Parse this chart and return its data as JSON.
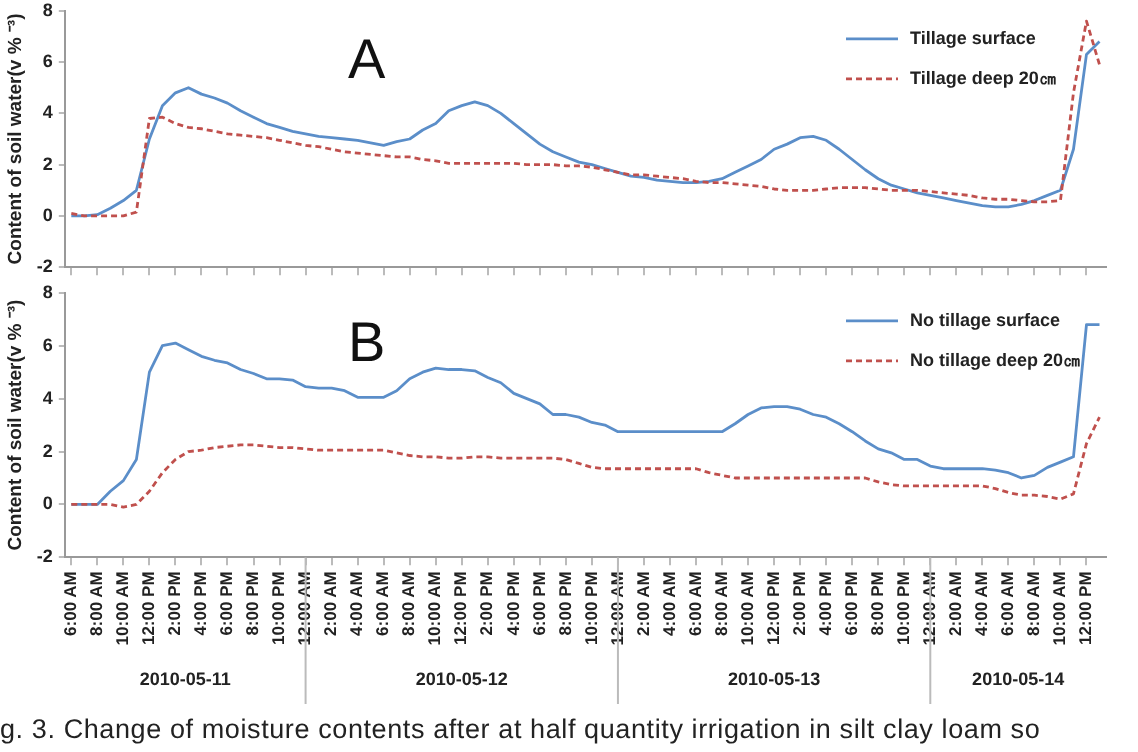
{
  "chart_data": [
    {
      "type": "line",
      "ylabel": "Content of soil water(v % ⁻³)",
      "legend": "top right",
      "tick_labels": "y",
      "annotations": [
        "A"
      ],
      "xticks": [
        {
          "value": "2010-05-11T06:00",
          "label": null
        },
        {
          "value": "2010-05-11T08:00",
          "label": null
        },
        {
          "value": "2010-05-11T10:00",
          "label": null
        },
        {
          "value": "2010-05-11T12:00",
          "label": null
        },
        {
          "value": "2010-05-11T14:00",
          "label": null
        },
        {
          "value": "2010-05-11T16:00",
          "label": null
        },
        {
          "value": "2010-05-11T18:00",
          "label": null
        },
        {
          "value": "2010-05-11T20:00",
          "label": null
        },
        {
          "value": "2010-05-11T22:00",
          "label": null
        },
        {
          "value": "2010-05-12T00:00",
          "label": null
        },
        {
          "value": "2010-05-12T02:00",
          "label": null
        },
        {
          "value": "2010-05-12T04:00",
          "label": null
        },
        {
          "value": "2010-05-12T06:00",
          "label": null
        },
        {
          "value": "2010-05-12T08:00",
          "label": null
        },
        {
          "value": "2010-05-12T10:00",
          "label": null
        },
        {
          "value": "2010-05-12T12:00",
          "label": null
        },
        {
          "value": "2010-05-12T14:00",
          "label": null
        },
        {
          "value": "2010-05-12T16:00",
          "label": null
        },
        {
          "value": "2010-05-12T18:00",
          "label": null
        },
        {
          "value": "2010-05-12T20:00",
          "label": null
        },
        {
          "value": "2010-05-12T22:00",
          "label": null
        },
        {
          "value": "2010-05-13T00:00",
          "label": null
        },
        {
          "value": "2010-05-13T02:00",
          "label": null
        },
        {
          "value": "2010-05-13T04:00",
          "label": null
        },
        {
          "value": "2010-05-13T06:00",
          "label": null
        },
        {
          "value": "2010-05-13T08:00",
          "label": null
        },
        {
          "value": "2010-05-13T10:00",
          "label": null
        },
        {
          "value": "2010-05-13T12:00",
          "label": null
        },
        {
          "value": "2010-05-13T14:00",
          "label": null
        },
        {
          "value": "2010-05-13T16:00",
          "label": null
        },
        {
          "value": "2010-05-13T18:00",
          "label": null
        },
        {
          "value": "2010-05-13T20:00",
          "label": null
        },
        {
          "value": "2010-05-13T22:00",
          "label": null
        },
        {
          "value": "2010-05-14T00:00",
          "label": null
        },
        {
          "value": "2010-05-14T02:00",
          "label": null
        },
        {
          "value": "2010-05-14T04:00",
          "label": null
        },
        {
          "value": "2010-05-14T06:00",
          "label": null
        },
        {
          "value": "2010-05-14T08:00",
          "label": null
        },
        {
          "value": "2010-05-14T10:00",
          "label": null
        },
        {
          "value": "2010-05-14T12:00",
          "label": null
        }
      ],
      "x": [
        "2010-05-11T06:00",
        "2010-05-11T07:00",
        "2010-05-11T08:00",
        "2010-05-11T09:00",
        "2010-05-11T10:00",
        "2010-05-11T11:00",
        "2010-05-11T12:00",
        "2010-05-11T13:00",
        "2010-05-11T14:00",
        "2010-05-11T15:00",
        "2010-05-11T16:00",
        "2010-05-11T17:00",
        "2010-05-11T18:00",
        "2010-05-11T19:00",
        "2010-05-11T20:00",
        "2010-05-11T21:00",
        "2010-05-11T22:00",
        "2010-05-11T23:00",
        "2010-05-12T00:00",
        "2010-05-12T01:00",
        "2010-05-12T02:00",
        "2010-05-12T03:00",
        "2010-05-12T04:00",
        "2010-05-12T05:00",
        "2010-05-12T06:00",
        "2010-05-12T07:00",
        "2010-05-12T08:00",
        "2010-05-12T09:00",
        "2010-05-12T10:00",
        "2010-05-12T11:00",
        "2010-05-12T12:00",
        "2010-05-12T13:00",
        "2010-05-12T14:00",
        "2010-05-12T15:00",
        "2010-05-12T16:00",
        "2010-05-12T17:00",
        "2010-05-12T18:00",
        "2010-05-12T19:00",
        "2010-05-12T20:00",
        "2010-05-12T21:00",
        "2010-05-12T22:00",
        "2010-05-12T23:00",
        "2010-05-13T00:00",
        "2010-05-13T01:00",
        "2010-05-13T02:00",
        "2010-05-13T03:00",
        "2010-05-13T04:00",
        "2010-05-13T05:00",
        "2010-05-13T06:00",
        "2010-05-13T07:00",
        "2010-05-13T08:00",
        "2010-05-13T09:00",
        "2010-05-13T10:00",
        "2010-05-13T11:00",
        "2010-05-13T12:00",
        "2010-05-13T13:00",
        "2010-05-13T14:00",
        "2010-05-13T15:00",
        "2010-05-13T16:00",
        "2010-05-13T17:00",
        "2010-05-13T18:00",
        "2010-05-13T19:00",
        "2010-05-13T20:00",
        "2010-05-13T21:00",
        "2010-05-13T22:00",
        "2010-05-13T23:00",
        "2010-05-14T00:00",
        "2010-05-14T01:00",
        "2010-05-14T02:00",
        "2010-05-14T03:00",
        "2010-05-14T04:00",
        "2010-05-14T05:00",
        "2010-05-14T06:00",
        "2010-05-14T07:00",
        "2010-05-14T08:00",
        "2010-05-14T09:00",
        "2010-05-14T10:00",
        "2010-05-14T11:00",
        "2010-05-14T12:00",
        "2010-05-14T13:00"
      ],
      "xlim": [
        "2010-05-11T05:30",
        "2010-05-14T13:30"
      ],
      "ylim": [
        -2,
        8
      ],
      "yticks": [
        -2,
        0,
        2,
        4,
        6,
        8
      ],
      "series": [
        {
          "name": "Tillage surface",
          "color": "#5b8ec9",
          "line_style": "solid",
          "values": [
            0,
            0,
            0.05,
            0.3,
            0.6,
            1.0,
            3.0,
            4.3,
            4.8,
            5.0,
            4.75,
            4.6,
            4.4,
            4.1,
            3.85,
            3.6,
            3.45,
            3.3,
            3.2,
            3.1,
            3.05,
            3.0,
            2.95,
            2.85,
            2.75,
            2.9,
            3.0,
            3.35,
            3.6,
            4.1,
            4.3,
            4.45,
            4.3,
            4.0,
            3.6,
            3.2,
            2.8,
            2.5,
            2.3,
            2.1,
            2.0,
            1.85,
            1.7,
            1.55,
            1.5,
            1.4,
            1.35,
            1.3,
            1.3,
            1.35,
            1.45,
            1.7,
            1.95,
            2.2,
            2.6,
            2.8,
            3.05,
            3.1,
            2.95,
            2.6,
            2.2,
            1.8,
            1.45,
            1.2,
            1.05,
            0.9,
            0.8,
            0.7,
            0.6,
            0.5,
            0.4,
            0.35,
            0.35,
            0.45,
            0.6,
            0.8,
            1.0,
            2.6,
            6.3,
            6.8
          ]
        },
        {
          "name": "Tillage deep 20㎝",
          "color": "#c0504d",
          "line_style": "dashed",
          "values": [
            0.1,
            0,
            0,
            0,
            0,
            0.15,
            3.8,
            3.85,
            3.6,
            3.45,
            3.4,
            3.3,
            3.2,
            3.15,
            3.1,
            3.05,
            2.95,
            2.85,
            2.75,
            2.7,
            2.6,
            2.5,
            2.45,
            2.4,
            2.35,
            2.3,
            2.3,
            2.2,
            2.15,
            2.05,
            2.05,
            2.05,
            2.05,
            2.05,
            2.05,
            2.0,
            2.0,
            2.0,
            1.95,
            1.95,
            1.9,
            1.8,
            1.7,
            1.6,
            1.6,
            1.55,
            1.5,
            1.45,
            1.35,
            1.3,
            1.3,
            1.25,
            1.2,
            1.15,
            1.05,
            1.0,
            1.0,
            1.0,
            1.05,
            1.1,
            1.1,
            1.1,
            1.05,
            1.0,
            1.0,
            1.0,
            0.95,
            0.9,
            0.85,
            0.8,
            0.7,
            0.65,
            0.65,
            0.6,
            0.55,
            0.55,
            0.6,
            4.8,
            7.6,
            5.9
          ]
        }
      ]
    },
    {
      "type": "line",
      "ylabel": "Content of soil water(v % ⁻³)",
      "legend": "top right",
      "annotations": [
        "B",
        "g. 3. Change of moisture contents after at half quantity irrigation in silt clay loam so",
        "2010-05-11",
        "2010-05-12",
        "2010-05-13",
        "2010-05-14"
      ],
      "x": [
        "2010-05-11T06:00",
        "2010-05-11T07:00",
        "2010-05-11T08:00",
        "2010-05-11T09:00",
        "2010-05-11T10:00",
        "2010-05-11T11:00",
        "2010-05-11T12:00",
        "2010-05-11T13:00",
        "2010-05-11T14:00",
        "2010-05-11T15:00",
        "2010-05-11T16:00",
        "2010-05-11T17:00",
        "2010-05-11T18:00",
        "2010-05-11T19:00",
        "2010-05-11T20:00",
        "2010-05-11T21:00",
        "2010-05-11T22:00",
        "2010-05-11T23:00",
        "2010-05-12T00:00",
        "2010-05-12T01:00",
        "2010-05-12T02:00",
        "2010-05-12T03:00",
        "2010-05-12T04:00",
        "2010-05-12T05:00",
        "2010-05-12T06:00",
        "2010-05-12T07:00",
        "2010-05-12T08:00",
        "2010-05-12T09:00",
        "2010-05-12T10:00",
        "2010-05-12T11:00",
        "2010-05-12T12:00",
        "2010-05-12T13:00",
        "2010-05-12T14:00",
        "2010-05-12T15:00",
        "2010-05-12T16:00",
        "2010-05-12T17:00",
        "2010-05-12T18:00",
        "2010-05-12T19:00",
        "2010-05-12T20:00",
        "2010-05-12T21:00",
        "2010-05-12T22:00",
        "2010-05-12T23:00",
        "2010-05-13T00:00",
        "2010-05-13T01:00",
        "2010-05-13T02:00",
        "2010-05-13T03:00",
        "2010-05-13T04:00",
        "2010-05-13T05:00",
        "2010-05-13T06:00",
        "2010-05-13T07:00",
        "2010-05-13T08:00",
        "2010-05-13T09:00",
        "2010-05-13T10:00",
        "2010-05-13T11:00",
        "2010-05-13T12:00",
        "2010-05-13T13:00",
        "2010-05-13T14:00",
        "2010-05-13T15:00",
        "2010-05-13T16:00",
        "2010-05-13T17:00",
        "2010-05-13T18:00",
        "2010-05-13T19:00",
        "2010-05-13T20:00",
        "2010-05-13T21:00",
        "2010-05-13T22:00",
        "2010-05-13T23:00",
        "2010-05-14T00:00",
        "2010-05-14T01:00",
        "2010-05-14T02:00",
        "2010-05-14T03:00",
        "2010-05-14T04:00",
        "2010-05-14T05:00",
        "2010-05-14T06:00",
        "2010-05-14T07:00",
        "2010-05-14T08:00",
        "2010-05-14T09:00",
        "2010-05-14T10:00",
        "2010-05-14T11:00",
        "2010-05-14T12:00",
        "2010-05-14T13:00"
      ],
      "xlim": [
        "2010-05-11T05:30",
        "2010-05-14T13:30"
      ],
      "xticks": [
        {
          "value": "2010-05-11T06:00",
          "label": "6:00 AM"
        },
        {
          "value": "2010-05-11T08:00",
          "label": "8:00 AM"
        },
        {
          "value": "2010-05-11T10:00",
          "label": "10:00 AM"
        },
        {
          "value": "2010-05-11T12:00",
          "label": "12:00 PM"
        },
        {
          "value": "2010-05-11T14:00",
          "label": "2:00 PM"
        },
        {
          "value": "2010-05-11T16:00",
          "label": "4:00 PM"
        },
        {
          "value": "2010-05-11T18:00",
          "label": "6:00 PM"
        },
        {
          "value": "2010-05-11T20:00",
          "label": "8:00 PM"
        },
        {
          "value": "2010-05-11T22:00",
          "label": "10:00 PM"
        },
        {
          "value": "2010-05-12T00:00",
          "label": "12:00 AM"
        },
        {
          "value": "2010-05-12T02:00",
          "label": "2:00 AM"
        },
        {
          "value": "2010-05-12T04:00",
          "label": "4:00 AM"
        },
        {
          "value": "2010-05-12T06:00",
          "label": "6:00 AM"
        },
        {
          "value": "2010-05-12T08:00",
          "label": "8:00 AM"
        },
        {
          "value": "2010-05-12T10:00",
          "label": "10:00 AM"
        },
        {
          "value": "2010-05-12T12:00",
          "label": "12:00 PM"
        },
        {
          "value": "2010-05-12T14:00",
          "label": "2:00 PM"
        },
        {
          "value": "2010-05-12T16:00",
          "label": "4:00 PM"
        },
        {
          "value": "2010-05-12T18:00",
          "label": "6:00 PM"
        },
        {
          "value": "2010-05-12T20:00",
          "label": "8:00 PM"
        },
        {
          "value": "2010-05-12T22:00",
          "label": "10:00 PM"
        },
        {
          "value": "2010-05-13T00:00",
          "label": "12:00 AM"
        },
        {
          "value": "2010-05-13T02:00",
          "label": "2:00 AM"
        },
        {
          "value": "2010-05-13T04:00",
          "label": "4:00 AM"
        },
        {
          "value": "2010-05-13T06:00",
          "label": "6:00 AM"
        },
        {
          "value": "2010-05-13T08:00",
          "label": "8:00 AM"
        },
        {
          "value": "2010-05-13T10:00",
          "label": "10:00 AM"
        },
        {
          "value": "2010-05-13T12:00",
          "label": "12:00 PM"
        },
        {
          "value": "2010-05-13T14:00",
          "label": "2:00 PM"
        },
        {
          "value": "2010-05-13T16:00",
          "label": "4:00 PM"
        },
        {
          "value": "2010-05-13T18:00",
          "label": "6:00 PM"
        },
        {
          "value": "2010-05-13T20:00",
          "label": "8:00 PM"
        },
        {
          "value": "2010-05-13T22:00",
          "label": "10:00 PM"
        },
        {
          "value": "2010-05-14T00:00",
          "label": "12:00 AM"
        },
        {
          "value": "2010-05-14T02:00",
          "label": "2:00 AM"
        },
        {
          "value": "2010-05-14T04:00",
          "label": "4:00 AM"
        },
        {
          "value": "2010-05-14T06:00",
          "label": "6:00 AM"
        },
        {
          "value": "2010-05-14T08:00",
          "label": "8:00 AM"
        },
        {
          "value": "2010-05-14T10:00",
          "label": "10:00 AM"
        },
        {
          "value": "2010-05-14T12:00",
          "label": "12:00 PM"
        }
      ],
      "ylim": [
        -2,
        8
      ],
      "yticks": [
        -2,
        0,
        2,
        4,
        6,
        8
      ],
      "series": [
        {
          "name": "No tillage surface",
          "color": "#5b8ec9",
          "line_style": "solid",
          "values": [
            0,
            0,
            0,
            0.5,
            0.9,
            1.7,
            5.0,
            6.0,
            6.1,
            5.85,
            5.6,
            5.45,
            5.35,
            5.1,
            4.95,
            4.75,
            4.75,
            4.7,
            4.45,
            4.4,
            4.4,
            4.3,
            4.05,
            4.05,
            4.05,
            4.3,
            4.75,
            5.0,
            5.15,
            5.1,
            5.1,
            5.05,
            4.8,
            4.6,
            4.2,
            4.0,
            3.8,
            3.4,
            3.4,
            3.3,
            3.1,
            3.0,
            2.75,
            2.75,
            2.75,
            2.75,
            2.75,
            2.75,
            2.75,
            2.75,
            2.75,
            3.05,
            3.4,
            3.65,
            3.7,
            3.7,
            3.6,
            3.4,
            3.3,
            3.05,
            2.75,
            2.4,
            2.1,
            1.95,
            1.7,
            1.7,
            1.45,
            1.35,
            1.35,
            1.35,
            1.35,
            1.3,
            1.2,
            1.0,
            1.1,
            1.4,
            1.6,
            1.8,
            6.8,
            6.8
          ]
        },
        {
          "name": "No tillage deep 20㎝",
          "color": "#c0504d",
          "line_style": "dashed",
          "values": [
            0,
            0,
            0,
            0,
            -0.1,
            0,
            0.5,
            1.2,
            1.7,
            2.0,
            2.05,
            2.15,
            2.2,
            2.25,
            2.25,
            2.2,
            2.15,
            2.15,
            2.1,
            2.05,
            2.05,
            2.05,
            2.05,
            2.05,
            2.05,
            1.95,
            1.85,
            1.8,
            1.8,
            1.75,
            1.75,
            1.8,
            1.8,
            1.75,
            1.75,
            1.75,
            1.75,
            1.75,
            1.7,
            1.55,
            1.4,
            1.35,
            1.35,
            1.35,
            1.35,
            1.35,
            1.35,
            1.35,
            1.35,
            1.2,
            1.1,
            1.0,
            1.0,
            1.0,
            1.0,
            1.0,
            1.0,
            1.0,
            1.0,
            1.0,
            1.0,
            1.0,
            0.85,
            0.75,
            0.7,
            0.7,
            0.7,
            0.7,
            0.7,
            0.7,
            0.7,
            0.6,
            0.45,
            0.35,
            0.35,
            0.3,
            0.2,
            0.4,
            2.3,
            3.3
          ]
        }
      ]
    }
  ]
}
